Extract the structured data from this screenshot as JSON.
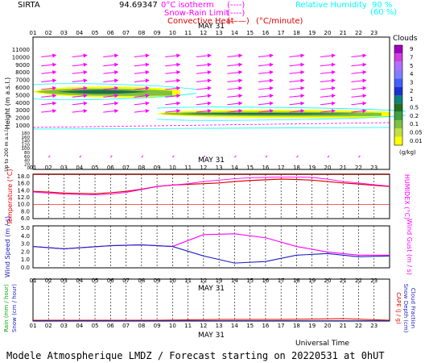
{
  "header": {
    "station": "SIRTA",
    "coords": "94.69347",
    "legend_isotherm": "0°C isotherm",
    "legend_isotherm_key": "(----)",
    "legend_snow": "Snow-Rain Limit",
    "legend_snow_key": "(----)",
    "legend_convective": "Convective Heat",
    "legend_convective_key": "(——)",
    "legend_convective_unit": "(°C/minute)",
    "legend_rh": "Relative Humidity",
    "legend_rh_90": "90 %",
    "legend_rh_60": "(60 %)"
  },
  "footer": {
    "universal_time": "Universal Time",
    "forecast": "Modele Atmospherique LMDZ / Forecast starting on 20220531 at 0hUT"
  },
  "hours": [
    "01",
    "02",
    "03",
    "04",
    "05",
    "06",
    "07",
    "08",
    "09",
    "10",
    "11",
    "12",
    "13",
    "14",
    "15",
    "16",
    "17",
    "18",
    "19",
    "20",
    "21",
    "22",
    "23"
  ],
  "date_label": "MAY 31",
  "colors": {
    "magenta": "#ff00ff",
    "cyan": "#00ffff",
    "red": "#e00000",
    "blue": "#2020c0",
    "navy": "#000080"
  },
  "icons": {
    "wind_arrows": "arrow-icon"
  },
  "chart_data": [
    {
      "type": "heatmap",
      "name": "clouds",
      "ylabel": "Height (m a.s.l.)",
      "ylabel2": "Up to 200 m a.s.l.",
      "yticks": [
        "11000",
        "10000",
        "9000",
        "8000",
        "7000",
        "6000",
        "5000",
        "4000",
        "3000",
        "2000",
        "1000",
        "180",
        "160",
        "140",
        "120",
        "100",
        "80",
        "60",
        "40",
        "20",
        "0"
      ],
      "colorbar_title": "Clouds",
      "colorbar_unit": "(g/kg)",
      "colorbar_ticks": [
        "9",
        "7",
        "5",
        "4",
        "3",
        "2",
        "1",
        "0.5",
        "0.2",
        "0.1",
        "0.05",
        "0.01"
      ],
      "colorbar_colors": [
        "#a000c0",
        "#d040e0",
        "#b070ff",
        "#8080ff",
        "#4060ff",
        "#2030d0",
        "#108080",
        "#207020",
        "#40a040",
        "#80c040",
        "#c0e040",
        "#ffff00"
      ],
      "cloud_layers": [
        {
          "base_m": 4900,
          "top_m": 6100,
          "from_hour": 0,
          "to_hour": 9.5
        },
        {
          "base_m": 2200,
          "top_m": 3000,
          "from_hour": 8,
          "to_hour": 23.5
        }
      ],
      "wind_rows_m": [
        10200,
        9000,
        8000,
        6900,
        5900,
        4900,
        3900,
        2900
      ],
      "rh_contour_labels": [
        "60",
        "90",
        "60"
      ]
    },
    {
      "type": "line",
      "name": "temperature",
      "ylabel": "Temperature (°C)",
      "y2label": "HUMIDEX (°C)",
      "yticks": [
        "18.0",
        "16.0",
        "14.0",
        "12.0",
        "10.0",
        "8.0",
        "6.0"
      ],
      "ylim": [
        6,
        18
      ],
      "x": [
        0,
        1,
        2,
        3,
        4,
        5,
        6,
        7,
        8,
        9,
        10,
        11,
        12,
        13,
        14,
        15,
        16,
        17,
        18,
        19,
        20,
        21,
        22,
        23
      ],
      "series": [
        {
          "values": [
            13.8,
            13.6,
            13.3,
            13.2,
            13.1,
            13.4,
            13.8,
            14.4,
            15.2,
            15.6,
            15.8,
            16.0,
            16.2,
            16.6,
            16.9,
            17.1,
            17.3,
            17.2,
            17.0,
            16.6,
            16.2,
            15.9,
            15.5,
            15.2
          ]
        },
        {
          "values": [
            13.6,
            13.3,
            13.0,
            12.9,
            12.8,
            13.0,
            13.5,
            14.3,
            15.2,
            15.6,
            16.0,
            16.6,
            17.0,
            17.4,
            17.7,
            17.8,
            17.9,
            17.9,
            17.8,
            17.3,
            16.6,
            16.2,
            15.7,
            15.3
          ]
        }
      ]
    },
    {
      "type": "line",
      "name": "wind",
      "ylabel": "Wind Speed (m / s)",
      "y2label": "Wind Gust (m / s)",
      "yticks": [
        "5.0",
        "4.0",
        "3.0",
        "2.0",
        "1.0",
        "0.0"
      ],
      "ylim": [
        0,
        5
      ],
      "x": [
        0,
        2,
        5,
        7,
        9,
        11,
        13,
        15,
        17,
        19,
        21,
        23
      ],
      "series": [
        {
          "values": [
            2.7,
            2.4,
            2.8,
            2.9,
            2.7,
            1.5,
            0.6,
            0.8,
            1.6,
            1.8,
            1.4,
            1.5
          ]
        },
        {
          "values": [
            2.7,
            2.4,
            2.8,
            2.9,
            2.7,
            4.2,
            4.3,
            3.8,
            2.7,
            2.0,
            1.6,
            1.6
          ]
        }
      ]
    },
    {
      "type": "line",
      "name": "precipitation",
      "ylabel": "Rain (mm / hour)",
      "ylabel2": "Snow (cm / hour)",
      "y2label": "CAPE (J / g)",
      "y2label2": "Snow Depth (cm)",
      "y2label3": "Cloud Fraction",
      "x": [
        0,
        4,
        8,
        12,
        16,
        20,
        23
      ],
      "series": [
        {
          "values": [
            0.0,
            0.0,
            0.0,
            0.05,
            0.05,
            0.1,
            0.0
          ]
        }
      ]
    }
  ]
}
